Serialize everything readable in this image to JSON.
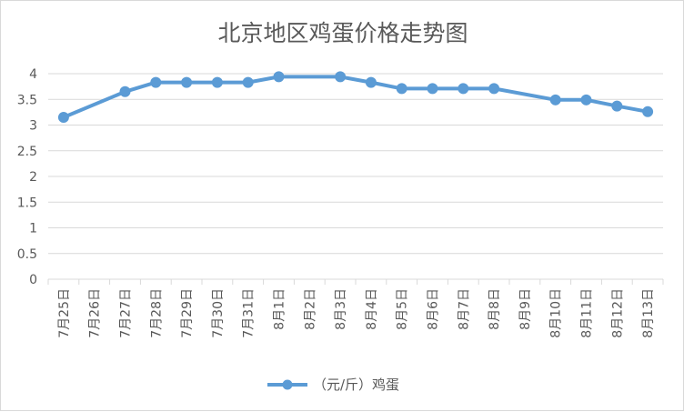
{
  "chart_data": {
    "type": "line",
    "title": "北京地区鸡蛋价格走势图",
    "categories": [
      "7月25日",
      "7月26日",
      "7月27日",
      "7月28日",
      "7月29日",
      "7月30日",
      "7月31日",
      "8月1日",
      "8月2日",
      "8月3日",
      "8月4日",
      "8月5日",
      "8月6日",
      "8月7日",
      "8月8日",
      "8月9日",
      "8月10日",
      "8月11日",
      "8月12日",
      "8月13日"
    ],
    "series": [
      {
        "name": "（元/斤）鸡蛋",
        "color": "#5B9BD5",
        "values": [
          3.15,
          null,
          3.65,
          3.83,
          3.83,
          3.83,
          3.83,
          3.94,
          null,
          3.94,
          3.83,
          3.71,
          3.71,
          3.71,
          3.71,
          null,
          3.49,
          3.49,
          3.37,
          3.26
        ]
      }
    ],
    "yticks": [
      "0",
      "0.5",
      "1",
      "1.5",
      "2",
      "2.5",
      "3",
      "3.5",
      "4"
    ],
    "ylim": [
      0,
      4
    ],
    "grid": true,
    "legend_position": "bottom",
    "xlabel": "",
    "ylabel": ""
  }
}
